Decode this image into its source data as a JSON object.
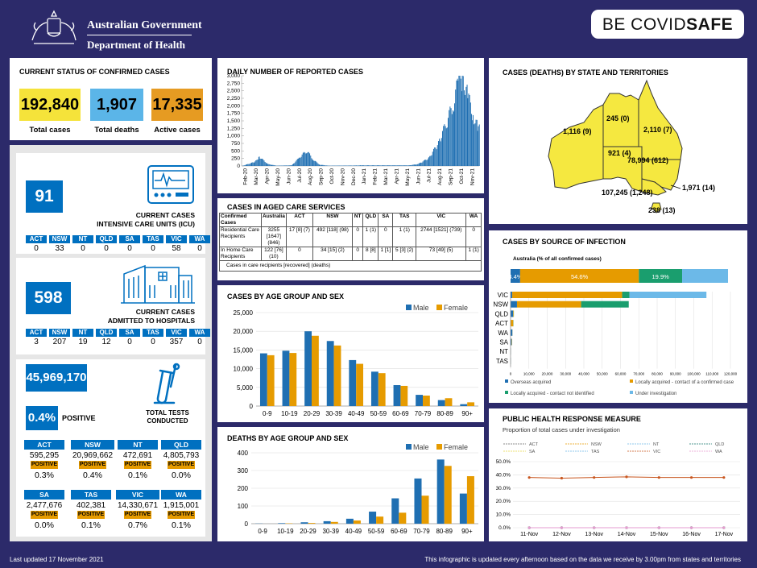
{
  "header": {
    "gov": "Australian Government",
    "dept": "Department of Health",
    "covid_prefix": "BE COVID",
    "covid_suffix": "SAFE"
  },
  "status": {
    "title": "CURRENT STATUS OF CONFIRMED CASES",
    "total_cases": "192,840",
    "total_cases_label": "Total cases",
    "total_deaths": "1,907",
    "total_deaths_label": "Total deaths",
    "active_cases": "17,335",
    "active_cases_label": "Active cases",
    "colors": {
      "cases": "#f5e33a",
      "deaths": "#5bb5e8",
      "active": "#e69b22"
    }
  },
  "icu": {
    "value": "91",
    "label1": "CURRENT CASES",
    "label2": "INTENSIVE CARE UNITS (ICU)",
    "states": [
      "ACT",
      "NSW",
      "NT",
      "QLD",
      "SA",
      "TAS",
      "VIC",
      "WA"
    ],
    "values": [
      "0",
      "33",
      "0",
      "0",
      "0",
      "0",
      "58",
      "0"
    ]
  },
  "hospital": {
    "value": "598",
    "label1": "CURRENT CASES",
    "label2": "ADMITTED TO HOSPITALS",
    "states": [
      "ACT",
      "NSW",
      "NT",
      "QLD",
      "SA",
      "TAS",
      "VIC",
      "WA"
    ],
    "values": [
      "3",
      "207",
      "19",
      "12",
      "0",
      "0",
      "357",
      "0"
    ]
  },
  "tests": {
    "total": "45,969,170",
    "positive_pct": "0.4%",
    "positive_label": "POSITIVE",
    "label1": "TOTAL TESTS",
    "label2": "CONDUCTED",
    "positive_tag": "POSITIVE",
    "states": [
      {
        "name": "ACT",
        "tests": "595,295",
        "pct": "0.3%"
      },
      {
        "name": "NSW",
        "tests": "20,969,662",
        "pct": "0.4%"
      },
      {
        "name": "NT",
        "tests": "472,691",
        "pct": "0.1%"
      },
      {
        "name": "QLD",
        "tests": "4,805,793",
        "pct": "0.0%"
      },
      {
        "name": "SA",
        "tests": "2,477,676",
        "pct": "0.0%"
      },
      {
        "name": "TAS",
        "tests": "402,381",
        "pct": "0.1%"
      },
      {
        "name": "VIC",
        "tests": "14,330,671",
        "pct": "0.7%"
      },
      {
        "name": "WA",
        "tests": "1,915,001",
        "pct": "0.1%"
      }
    ]
  },
  "daily": {
    "title": "DAILY NUMBER OF REPORTED CASES",
    "yticks": [
      "0",
      "250",
      "500",
      "750",
      "1,000",
      "1,250",
      "1,500",
      "1,750",
      "2,000",
      "2,250",
      "2,500",
      "2,750",
      "3,000"
    ],
    "xticks": [
      "Feb-20",
      "Mar-20",
      "Apr-20",
      "May-20",
      "Jun-20",
      "Jul-20",
      "Aug-20",
      "Sep-20",
      "Oct-20",
      "Nov-20",
      "Dec-20",
      "Jan-21",
      "Feb-21",
      "Mar-21",
      "Apr-21",
      "May-21",
      "Jun-21",
      "Jul-21",
      "Aug-21",
      "Sep-21",
      "Oct-21",
      "Nov-21"
    ],
    "color": "#1f6fb2"
  },
  "aged": {
    "title": "CASES IN AGED CARE SERVICES",
    "headers": [
      "Confirmed Cases",
      "Australia",
      "ACT",
      "NSW",
      "NT",
      "QLD",
      "SA",
      "TAS",
      "VIC",
      "WA"
    ],
    "rows": [
      [
        "Residential Care Recipients",
        "3255 [1647] (846)",
        "17 [8] (7)",
        "492 [118] (98)",
        "0",
        "1 (1)",
        "0",
        "1 (1)",
        "2744 [1521] (739)",
        "0"
      ],
      [
        "In Home Care Recipients",
        "122 [76] (10)",
        "0",
        "34 [15] (2)",
        "0",
        "8 [8]",
        "1 [1]",
        "5 [3] (2)",
        "73 [49] (5)",
        "1 (1)"
      ]
    ],
    "note": "Cases in care recipients [recovered] (deaths)"
  },
  "chart_data": [
    {
      "type": "bar",
      "title": "CASES BY AGE GROUP AND SEX",
      "categories": [
        "0-9",
        "10-19",
        "20-29",
        "30-39",
        "40-49",
        "50-59",
        "60-69",
        "70-79",
        "80-89",
        "90+"
      ],
      "ylim": [
        0,
        25000
      ],
      "yticks": [
        "0",
        "5,000",
        "10,000",
        "15,000",
        "20,000",
        "25,000"
      ],
      "series": [
        {
          "name": "Male",
          "color": "#1f6fb2",
          "values": [
            14100,
            14800,
            20000,
            17400,
            12300,
            9200,
            5600,
            3000,
            1600,
            500
          ]
        },
        {
          "name": "Female",
          "color": "#e69b00",
          "values": [
            13600,
            14200,
            18800,
            16200,
            11300,
            8800,
            5400,
            2800,
            2100,
            1000
          ]
        }
      ]
    },
    {
      "type": "bar",
      "title": "DEATHS BY AGE GROUP AND SEX",
      "categories": [
        "0-9",
        "10-19",
        "20-29",
        "30-39",
        "40-49",
        "50-59",
        "60-69",
        "70-79",
        "80-89",
        "90+"
      ],
      "ylim": [
        0,
        400
      ],
      "yticks": [
        "0",
        "100",
        "200",
        "300",
        "400"
      ],
      "series": [
        {
          "name": "Male",
          "color": "#1f6fb2",
          "values": [
            1,
            3,
            8,
            14,
            28,
            68,
            143,
            255,
            362,
            170
          ]
        },
        {
          "name": "Female",
          "color": "#e69b00",
          "values": [
            0,
            2,
            4,
            10,
            18,
            40,
            62,
            158,
            326,
            268
          ]
        }
      ]
    },
    {
      "type": "bar",
      "title": "CASES BY SOURCE OF INFECTION",
      "subtitle": "Australia (% of all confirmed cases)",
      "australia": [
        {
          "label": "4.4%",
          "value": 4.4,
          "color": "#1f6fb2"
        },
        {
          "label": "54.6%",
          "value": 54.6,
          "color": "#e69b00"
        },
        {
          "label": "19.9%",
          "value": 19.9,
          "color": "#1a9e6e"
        },
        {
          "label": "",
          "value": 21.1,
          "color": "#6cb9e8"
        }
      ],
      "categories": [
        "VIC",
        "NSW",
        "QLD",
        "ACT",
        "WA",
        "SA",
        "NT",
        "TAS"
      ],
      "xlim": [
        0,
        120000
      ],
      "xticks": [
        "0",
        "10,000",
        "20,000",
        "30,000",
        "40,000",
        "50,000",
        "60,000",
        "70,000",
        "80,000",
        "90,000",
        "100,000",
        "110,000",
        "120,000"
      ],
      "series": [
        {
          "name": "Overseas acquired",
          "color": "#1f6fb2",
          "values": [
            900,
            3500,
            1400,
            80,
            1000,
            600,
            150,
            150
          ]
        },
        {
          "name": "Locally acquired - contact of a confirmed case",
          "color": "#e69b00",
          "values": [
            60000,
            35000,
            300,
            1400,
            50,
            200,
            50,
            50
          ]
        },
        {
          "name": "Locally acquired - contact not identified",
          "color": "#1a9e6e",
          "values": [
            4000,
            26000,
            100,
            100,
            20,
            30,
            20,
            20
          ]
        },
        {
          "name": "Under investigation",
          "color": "#6cb9e8",
          "values": [
            42000,
            0,
            0,
            0,
            0,
            0,
            0,
            0
          ]
        }
      ]
    },
    {
      "type": "line",
      "title": "PUBLIC HEALTH RESPONSE MEASURE",
      "subtitle": "Proportion of total cases under investigation",
      "x": [
        "11-Nov",
        "12-Nov",
        "13-Nov",
        "14-Nov",
        "15-Nov",
        "16-Nov",
        "17-Nov"
      ],
      "ylim": [
        0,
        50
      ],
      "yticks": [
        "0.0%",
        "10.0%",
        "20.0%",
        "30.0%",
        "40.0%",
        "50.0%"
      ],
      "series": [
        {
          "name": "ACT",
          "color": "#666666",
          "values": [
            0,
            0,
            0,
            0,
            0,
            0,
            0
          ]
        },
        {
          "name": "NSW",
          "color": "#e69b00",
          "values": [
            0,
            0,
            0,
            0,
            0,
            0,
            0
          ]
        },
        {
          "name": "NT",
          "color": "#6cb9e8",
          "values": [
            0,
            0,
            0,
            0,
            0,
            0,
            0
          ]
        },
        {
          "name": "QLD",
          "color": "#1a7a6e",
          "values": [
            0,
            0,
            0,
            0,
            0,
            0,
            0
          ]
        },
        {
          "name": "SA",
          "color": "#e8d84a",
          "values": [
            0,
            0,
            0,
            0,
            0,
            0,
            0
          ]
        },
        {
          "name": "TAS",
          "color": "#6cb9e8",
          "values": [
            0,
            0,
            0,
            0,
            0,
            0,
            0
          ]
        },
        {
          "name": "VIC",
          "color": "#c8561f",
          "values": [
            38,
            37.5,
            38,
            38.5,
            38,
            38,
            38
          ]
        },
        {
          "name": "WA",
          "color": "#e69bd0",
          "values": [
            0,
            0,
            0,
            0,
            0,
            0,
            0
          ]
        }
      ]
    }
  ],
  "states_map": {
    "title": "CASES (DEATHS) BY STATE AND TERRITORIES",
    "WA": "1,116 (9)",
    "NT": "245 (0)",
    "QLD": "2,110 (7)",
    "SA": "921 (4)",
    "NSW": "78,994 (612)",
    "VIC": "107,245 (1,248)",
    "ACT": "1,971 (14)",
    "TAS": "238 (13)"
  },
  "footer": {
    "updated": "Last updated 17 November 2021",
    "note": "This infographic is updated every afternoon based on the data we receive by 3.00pm from states and territories"
  }
}
